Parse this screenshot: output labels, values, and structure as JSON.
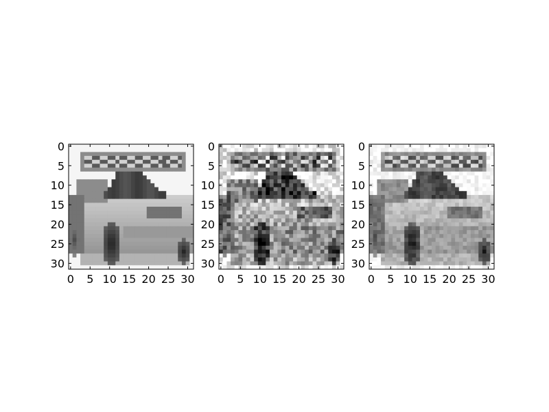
{
  "figure": {
    "background": "#ffffff",
    "panels": [
      {
        "id": "panel-1",
        "description": "grayscale 32x32 car image (original)",
        "x_ticks": [
          "0",
          "5",
          "10",
          "15",
          "20",
          "25",
          "30"
        ],
        "y_ticks": [
          "0",
          "5",
          "10",
          "15",
          "20",
          "25",
          "30"
        ],
        "noise": 0.0,
        "xlim": [
          -0.5,
          31.5
        ],
        "ylim": [
          31.5,
          -0.5
        ]
      },
      {
        "id": "panel-2",
        "description": "grayscale 32x32 car image with heavy noise",
        "x_ticks": [
          "0",
          "5",
          "10",
          "15",
          "20",
          "25",
          "30"
        ],
        "y_ticks": [
          "0",
          "5",
          "10",
          "15",
          "20",
          "25",
          "30"
        ],
        "noise": 0.22,
        "xlim": [
          -0.5,
          31.5
        ],
        "ylim": [
          31.5,
          -0.5
        ]
      },
      {
        "id": "panel-3",
        "description": "grayscale 32x32 car image, denoised / smoothed",
        "x_ticks": [
          "0",
          "5",
          "10",
          "15",
          "20",
          "25",
          "30"
        ],
        "y_ticks": [
          "0",
          "5",
          "10",
          "15",
          "20",
          "25",
          "30"
        ],
        "noise": 0.08,
        "xlim": [
          -0.5,
          31.5
        ],
        "ylim": [
          31.5,
          -0.5
        ]
      }
    ],
    "tick_values": [
      0,
      5,
      10,
      15,
      20,
      25,
      30
    ],
    "colormap": "gray",
    "colors": {
      "axis": "#000000",
      "text": "#000000"
    }
  }
}
